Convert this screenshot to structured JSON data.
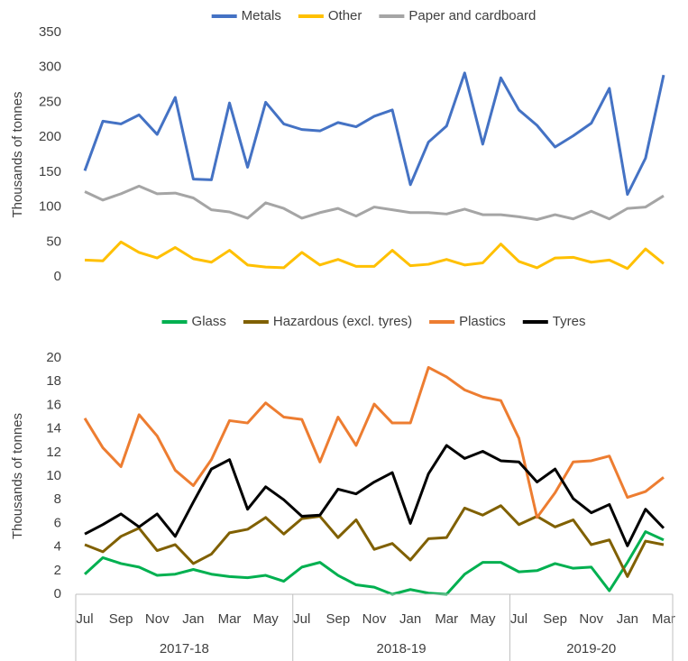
{
  "chart_data": [
    {
      "type": "line",
      "y_label": "Thousands of tonnes",
      "ylim": [
        0,
        350
      ],
      "yticks": [
        0,
        50,
        100,
        150,
        200,
        250,
        300,
        350
      ],
      "series": [
        {
          "name": "Metals",
          "color": "#4472c4",
          "values": [
            152,
            223,
            219,
            232,
            204,
            257,
            140,
            139,
            249,
            157,
            250,
            219,
            211,
            209,
            221,
            215,
            230,
            239,
            132,
            193,
            216,
            292,
            190,
            285,
            239,
            217,
            186,
            202,
            220,
            270,
            118,
            170,
            289
          ]
        },
        {
          "name": "Other",
          "color": "#ffc000",
          "values": [
            24,
            23,
            50,
            35,
            27,
            42,
            26,
            21,
            38,
            17,
            14,
            13,
            35,
            17,
            25,
            15,
            15,
            38,
            16,
            18,
            25,
            17,
            20,
            47,
            22,
            13,
            27,
            28,
            21,
            24,
            12,
            40,
            19
          ]
        },
        {
          "name": "Paper and cardboard",
          "color": "#a5a5a5",
          "values": [
            122,
            110,
            119,
            130,
            119,
            120,
            113,
            96,
            93,
            84,
            106,
            98,
            84,
            92,
            98,
            87,
            100,
            96,
            92,
            92,
            90,
            97,
            89,
            89,
            86,
            82,
            89,
            83,
            94,
            83,
            98,
            100,
            116
          ]
        }
      ]
    },
    {
      "type": "line",
      "y_label": "Thousands of tonnes",
      "ylim": [
        0,
        20
      ],
      "yticks": [
        0,
        2,
        4,
        6,
        8,
        10,
        12,
        14,
        16,
        18,
        20
      ],
      "categories": [
        "Jul",
        null,
        "Sep",
        null,
        "Nov",
        null,
        "Jan",
        null,
        "Mar",
        null,
        "May",
        null,
        "Jul",
        null,
        "Sep",
        null,
        "Nov",
        null,
        "Jan",
        null,
        "Mar",
        null,
        "May",
        null,
        "Jul",
        null,
        "Sep",
        null,
        "Nov",
        null,
        "Jan",
        null,
        "Mar"
      ],
      "groups": [
        {
          "label": "2017-18",
          "size": 12
        },
        {
          "label": "2018-19",
          "size": 12
        },
        {
          "label": "2019-20",
          "size": 9
        }
      ],
      "series": [
        {
          "name": "Glass",
          "color": "#00b050",
          "values": [
            1.7,
            3.1,
            2.6,
            2.3,
            1.6,
            1.7,
            2.1,
            1.7,
            1.5,
            1.4,
            1.6,
            1.1,
            2.3,
            2.7,
            1.6,
            0.8,
            0.6,
            0.0,
            0.4,
            0.1,
            0.0,
            1.7,
            2.7,
            2.7,
            1.9,
            2.0,
            2.6,
            2.2,
            2.3,
            0.3,
            2.7,
            5.3,
            4.6
          ]
        },
        {
          "name": "Hazardous (excl. tyres)",
          "color": "#806000",
          "values": [
            4.2,
            3.6,
            4.9,
            5.6,
            3.7,
            4.2,
            2.6,
            3.4,
            5.2,
            5.5,
            6.5,
            5.1,
            6.4,
            6.6,
            4.8,
            6.3,
            3.8,
            4.3,
            2.9,
            4.7,
            4.8,
            7.3,
            6.7,
            7.5,
            5.9,
            6.6,
            5.7,
            6.3,
            4.2,
            4.6,
            1.5,
            4.5,
            4.2
          ]
        },
        {
          "name": "Plastics",
          "color": "#ed7d31",
          "values": [
            14.9,
            12.4,
            10.8,
            15.2,
            13.4,
            10.5,
            9.2,
            11.4,
            14.7,
            14.5,
            16.2,
            15.0,
            14.8,
            11.2,
            15.0,
            12.6,
            16.1,
            14.5,
            14.5,
            19.2,
            18.4,
            17.3,
            16.7,
            16.4,
            13.2,
            6.5,
            8.6,
            11.2,
            11.3,
            11.7,
            8.2,
            8.7,
            9.9
          ]
        },
        {
          "name": "Tyres",
          "color": "#000000",
          "values": [
            5.1,
            5.9,
            6.8,
            5.7,
            6.8,
            4.9,
            7.8,
            10.6,
            11.4,
            7.2,
            9.1,
            8.0,
            6.6,
            6.7,
            8.9,
            8.5,
            9.5,
            10.3,
            6.0,
            10.2,
            12.6,
            11.5,
            12.1,
            11.3,
            11.2,
            9.5,
            10.6,
            8.1,
            6.9,
            7.6,
            4.1,
            7.2,
            5.6
          ]
        }
      ]
    }
  ]
}
